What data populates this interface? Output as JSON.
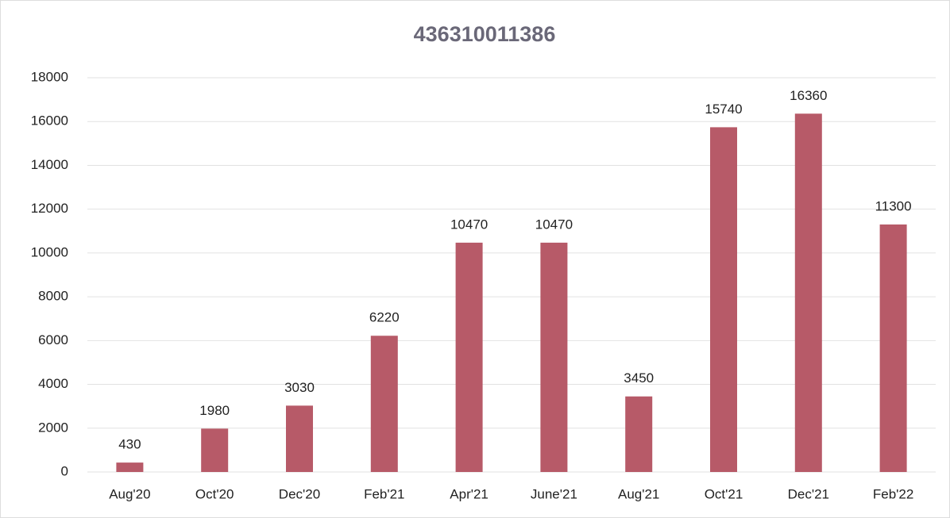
{
  "chart_data": {
    "type": "bar",
    "title": "436310011386",
    "categories": [
      "Aug'20",
      "Oct'20",
      "Dec'20",
      "Feb'21",
      "Apr'21",
      "June'21",
      "Aug'21",
      "Oct'21",
      "Dec'21",
      "Feb'22"
    ],
    "values": [
      430,
      1980,
      3030,
      6220,
      10470,
      10470,
      3450,
      15740,
      16360,
      11300
    ],
    "color": "#b75a68",
    "ylim": [
      0,
      18000
    ],
    "yticks": [
      0,
      2000,
      4000,
      6000,
      8000,
      10000,
      12000,
      14000,
      16000,
      18000
    ],
    "grid": true
  }
}
